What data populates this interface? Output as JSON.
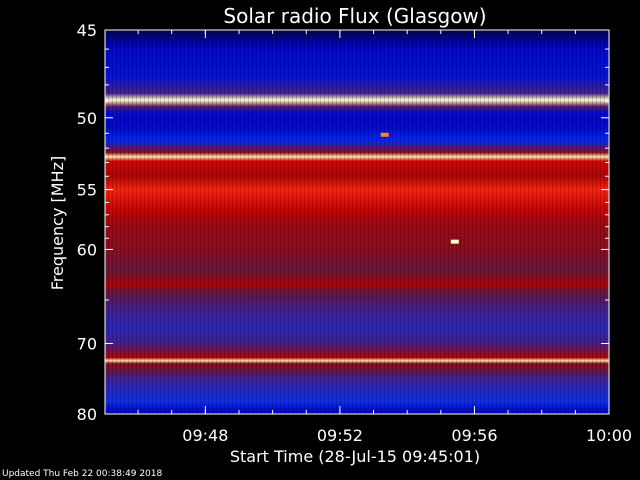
{
  "chart_data": {
    "type": "heatmap",
    "title": "Solar radio Flux (Glasgow)",
    "xlabel": "Start Time (28-Jul-15 09:45:01)",
    "ylabel": "Frequency [MHz]",
    "x_start": "09:45:01",
    "x_end": "10:00:00",
    "x_ticks": [
      "09:48",
      "09:52",
      "09:56",
      "10:00"
    ],
    "y_range_mhz": [
      45,
      80
    ],
    "y_ticks": [
      "45",
      "50",
      "55",
      "60",
      "70",
      "80"
    ],
    "y_tick_values": [
      45,
      50,
      55,
      60,
      70,
      80
    ],
    "y_minor_values": [
      46,
      47,
      48,
      49,
      51,
      52,
      53,
      54,
      56,
      57,
      58,
      59,
      65
    ],
    "y_scale": "reciprocal",
    "colormap": [
      "#00003c",
      "#0000c8",
      "#0030ff",
      "#3c1e9a",
      "#64143c",
      "#b40000",
      "#f00000",
      "#ff4614",
      "#ffa050",
      "#ffffc8"
    ],
    "intensity_profile": [
      {
        "mhz": 45.0,
        "level": 0.0
      },
      {
        "mhz": 45.3,
        "level": 0.05
      },
      {
        "mhz": 46.0,
        "level": 0.12
      },
      {
        "mhz": 47.5,
        "level": 0.15
      },
      {
        "mhz": 48.5,
        "level": 0.35
      },
      {
        "mhz": 48.9,
        "level": 1.0
      },
      {
        "mhz": 49.3,
        "level": 0.4
      },
      {
        "mhz": 49.7,
        "level": 0.13
      },
      {
        "mhz": 50.5,
        "level": 0.12
      },
      {
        "mhz": 51.5,
        "level": 0.2
      },
      {
        "mhz": 52.3,
        "level": 0.5
      },
      {
        "mhz": 52.6,
        "level": 0.98
      },
      {
        "mhz": 52.9,
        "level": 0.62
      },
      {
        "mhz": 54.0,
        "level": 0.55
      },
      {
        "mhz": 55.0,
        "level": 0.72
      },
      {
        "mhz": 56.5,
        "level": 0.6
      },
      {
        "mhz": 58.0,
        "level": 0.52
      },
      {
        "mhz": 60.0,
        "level": 0.5
      },
      {
        "mhz": 62.0,
        "level": 0.45
      },
      {
        "mhz": 63.5,
        "level": 0.55
      },
      {
        "mhz": 64.0,
        "level": 0.45
      },
      {
        "mhz": 66.0,
        "level": 0.35
      },
      {
        "mhz": 68.0,
        "level": 0.3
      },
      {
        "mhz": 70.0,
        "level": 0.35
      },
      {
        "mhz": 71.8,
        "level": 0.55
      },
      {
        "mhz": 72.2,
        "level": 0.97
      },
      {
        "mhz": 72.6,
        "level": 0.5
      },
      {
        "mhz": 73.5,
        "level": 0.45
      },
      {
        "mhz": 74.5,
        "level": 0.35
      },
      {
        "mhz": 76.5,
        "level": 0.28
      },
      {
        "mhz": 78.0,
        "level": 0.25
      },
      {
        "mhz": 79.0,
        "level": 0.15
      },
      {
        "mhz": 80.0,
        "level": 0.1
      }
    ],
    "bright_features": [
      {
        "time": "09:53:20",
        "mhz": 51.1,
        "level": 0.85
      },
      {
        "time": "09:55:25",
        "mhz": 59.3,
        "level": 1.0
      }
    ]
  },
  "footer": "Updated Thu Feb 22 00:38:49 2018"
}
